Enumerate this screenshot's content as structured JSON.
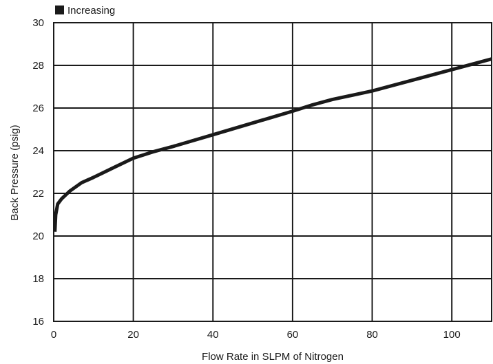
{
  "chart_data": {
    "type": "line",
    "title": "",
    "xlabel": "Flow Rate in SLPM of Nitrogen",
    "ylabel": "Back Pressure (psig)",
    "xlim": [
      0,
      110
    ],
    "ylim": [
      16,
      30
    ],
    "xticks": [
      0,
      20,
      40,
      60,
      80,
      100
    ],
    "yticks": [
      16,
      18,
      20,
      22,
      24,
      26,
      28,
      30
    ],
    "grid": true,
    "legend_position": "top-left",
    "series": [
      {
        "name": "Increasing",
        "color": "#1a1a1a",
        "x": [
          0.3,
          0.5,
          1,
          2,
          4,
          7,
          10,
          15,
          20,
          25,
          30,
          40,
          50,
          60,
          65,
          70,
          80,
          90,
          100,
          105,
          110
        ],
        "y": [
          20.2,
          21.0,
          21.5,
          21.75,
          22.1,
          22.5,
          22.75,
          23.2,
          23.65,
          23.95,
          24.2,
          24.75,
          25.3,
          25.85,
          26.15,
          26.4,
          26.8,
          27.3,
          27.8,
          28.05,
          28.3
        ]
      }
    ]
  }
}
